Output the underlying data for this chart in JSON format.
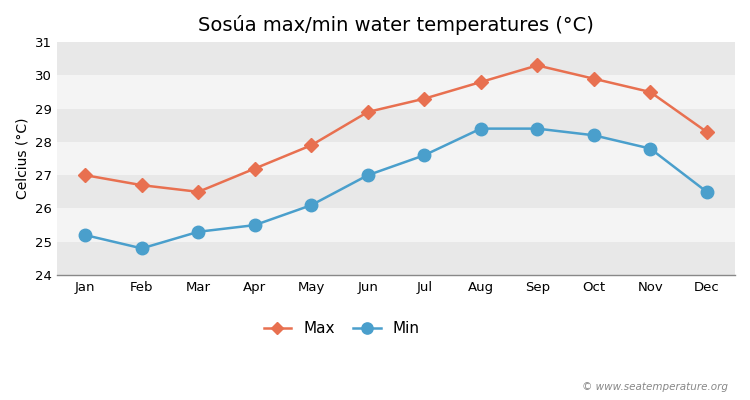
{
  "title": "Sosúa max/min water temperatures (°C)",
  "xlabel": "",
  "ylabel": "Celcius (°C)",
  "months": [
    "Jan",
    "Feb",
    "Mar",
    "Apr",
    "May",
    "Jun",
    "Jul",
    "Aug",
    "Sep",
    "Oct",
    "Nov",
    "Dec"
  ],
  "max_temps": [
    27.0,
    26.7,
    26.5,
    27.2,
    27.9,
    28.9,
    29.3,
    29.8,
    30.3,
    29.9,
    29.5,
    28.3
  ],
  "min_temps": [
    25.2,
    24.8,
    25.3,
    25.5,
    26.1,
    27.0,
    27.6,
    28.4,
    28.4,
    28.2,
    27.8,
    26.5
  ],
  "max_color": "#e87050",
  "min_color": "#4a9fcc",
  "fig_bg_color": "#ffffff",
  "band_colors": [
    "#e8e8e8",
    "#f4f4f4"
  ],
  "ylim": [
    24,
    31
  ],
  "yticks": [
    24,
    25,
    26,
    27,
    28,
    29,
    30,
    31
  ],
  "watermark": "© www.seatemperature.org",
  "legend_labels": [
    "Max",
    "Min"
  ],
  "linewidth": 1.8,
  "markersize_max": 7,
  "markersize_min": 9,
  "title_fontsize": 14,
  "label_fontsize": 10,
  "tick_fontsize": 9.5,
  "legend_fontsize": 11
}
